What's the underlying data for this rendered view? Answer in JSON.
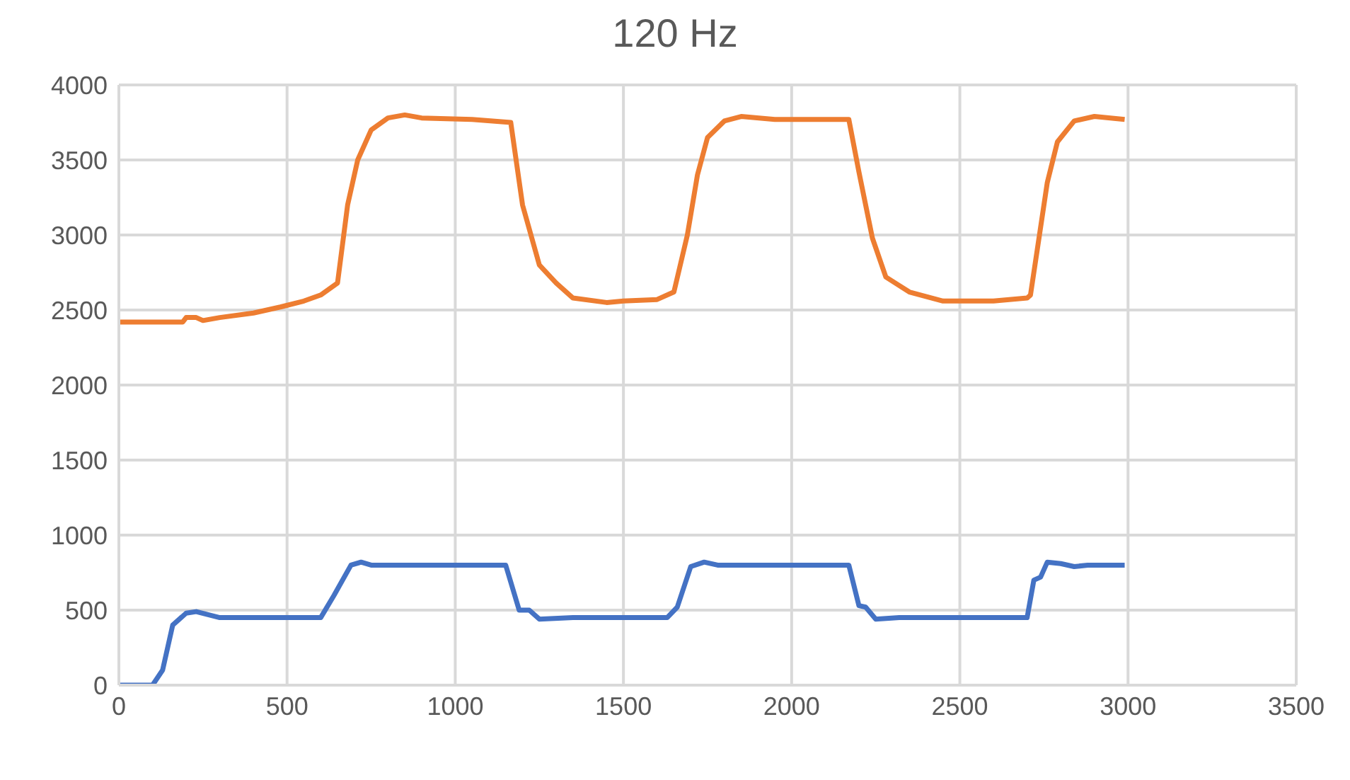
{
  "chart_data": {
    "type": "line",
    "title": "120 Hz",
    "series": [
      {
        "color": "#4472c4",
        "x": [
          0,
          100,
          130,
          160,
          200,
          230,
          300,
          600,
          640,
          690,
          720,
          750,
          1150,
          1190,
          1220,
          1250,
          1350,
          1630,
          1660,
          1700,
          1740,
          1780,
          2170,
          2200,
          2220,
          2250,
          2320,
          2700,
          2720,
          2740,
          2760,
          2800,
          2840,
          2880,
          2990
        ],
        "values": [
          0,
          0,
          100,
          400,
          480,
          490,
          450,
          450,
          600,
          800,
          820,
          800,
          800,
          500,
          500,
          440,
          450,
          450,
          520,
          790,
          820,
          800,
          800,
          530,
          520,
          440,
          450,
          450,
          700,
          720,
          820,
          810,
          790,
          800,
          800
        ]
      },
      {
        "color": "#ed7d31",
        "x": [
          0,
          190,
          200,
          230,
          250,
          300,
          400,
          480,
          550,
          600,
          650,
          680,
          710,
          750,
          800,
          850,
          900,
          1050,
          1165,
          1200,
          1250,
          1300,
          1350,
          1450,
          1500,
          1600,
          1650,
          1690,
          1720,
          1750,
          1800,
          1850,
          1950,
          2170,
          2200,
          2240,
          2280,
          2350,
          2450,
          2600,
          2700,
          2710,
          2730,
          2760,
          2790,
          2840,
          2900,
          2990
        ],
        "values": [
          2420,
          2420,
          2450,
          2450,
          2430,
          2450,
          2480,
          2520,
          2560,
          2600,
          2680,
          3200,
          3500,
          3700,
          3780,
          3800,
          3780,
          3770,
          3750,
          3200,
          2800,
          2680,
          2580,
          2550,
          2560,
          2570,
          2620,
          3000,
          3400,
          3650,
          3760,
          3790,
          3770,
          3770,
          3420,
          2980,
          2720,
          2620,
          2560,
          2560,
          2580,
          2600,
          2900,
          3350,
          3620,
          3760,
          3790,
          3770
        ]
      }
    ],
    "xlim": [
      0,
      3500
    ],
    "xticks": [
      0,
      500,
      1000,
      1500,
      2000,
      2500,
      3000,
      3500
    ],
    "ylim": [
      0,
      4000
    ],
    "yticks": [
      0,
      500,
      1000,
      1500,
      2000,
      2500,
      3000,
      3500,
      4000
    ],
    "grid": true,
    "marker": "none",
    "line_style": "solid"
  }
}
